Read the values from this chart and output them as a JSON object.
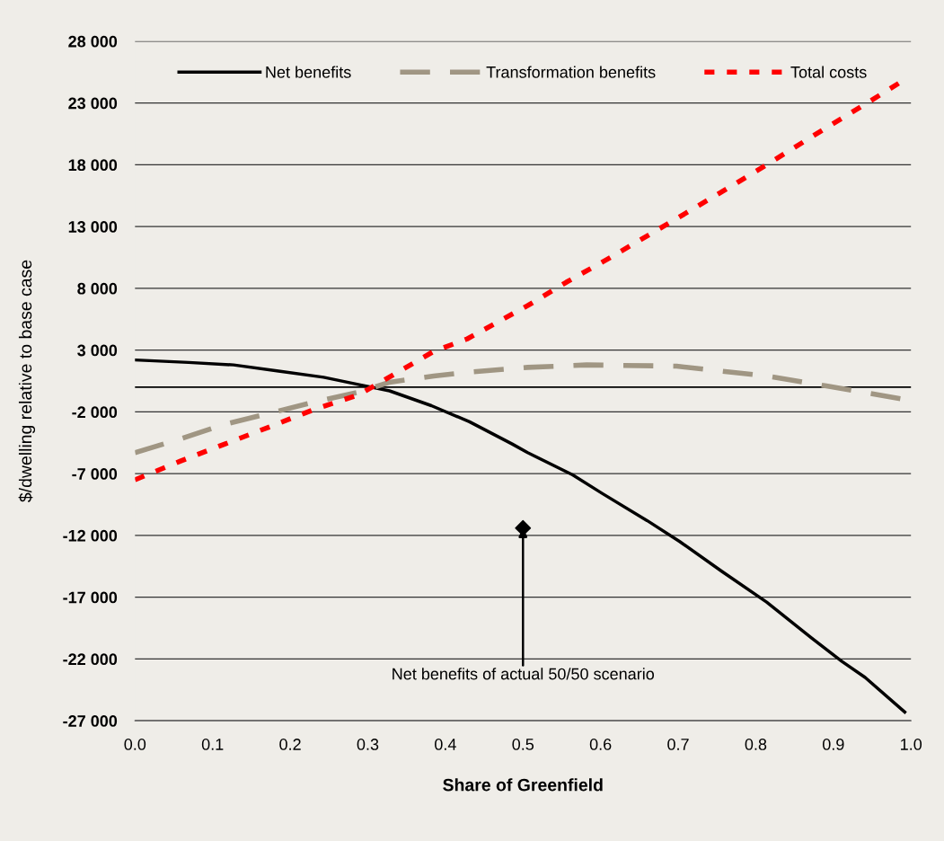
{
  "chart_data": {
    "type": "line",
    "xlabel": "Share of Greenfield",
    "ylabel": "$/dwelling relative to base case",
    "series": [
      {
        "name": "Net benefits",
        "color": "#000000",
        "line_style": "solid",
        "x": [
          0,
          0.069,
          0.127,
          0.185,
          0.243,
          0.289,
          0.328,
          0.382,
          0.431,
          0.486,
          0.506,
          0.564,
          0.602,
          0.66,
          0.702,
          0.756,
          0.814,
          0.872,
          0.911,
          0.941,
          0.992
        ],
        "values": [
          2200,
          2000,
          1800,
          1300,
          800,
          200,
          -300,
          -1500,
          -2800,
          -4600,
          -5300,
          -7100,
          -8600,
          -10800,
          -12500,
          -14900,
          -17400,
          -20300,
          -22200,
          -23500,
          -26300
        ]
      },
      {
        "name": "Transformation benefits",
        "color": "#a09683",
        "line_style": "dashed",
        "x": [
          0,
          0.058,
          0.116,
          0.174,
          0.231,
          0.289,
          0.328,
          0.385,
          0.428,
          0.506,
          0.582,
          0.698,
          0.756,
          0.814,
          0.891,
          0.992
        ],
        "values": [
          -5300,
          -4200,
          -3000,
          -2100,
          -1200,
          -400,
          400,
          900,
          1200,
          1600,
          1800,
          1700,
          1300,
          900,
          100,
          -1000
        ]
      },
      {
        "name": "Total costs",
        "color": "#ff0000",
        "line_style": "dotted",
        "x": [
          0,
          0.058,
          0.116,
          0.174,
          0.231,
          0.289,
          0.385,
          0.428,
          0.506,
          0.556,
          0.61,
          0.686,
          0.764,
          0.814,
          0.891,
          0.941,
          0.992
        ],
        "values": [
          -7500,
          -6000,
          -4600,
          -3200,
          -1800,
          -600,
          2900,
          3900,
          6600,
          8500,
          10400,
          13200,
          16100,
          18000,
          21000,
          22900,
          24900
        ]
      },
      {
        "type": "scatter",
        "marker": "diamond",
        "color": "#000000",
        "x": [
          0.5
        ],
        "values": [
          -11400
        ]
      }
    ],
    "annotations": [
      {
        "text": "Net benefits of actual 50/50 scenario",
        "x": 0.5,
        "y": -11400
      }
    ],
    "ref_lines": [
      {
        "axis": "y",
        "value": 0,
        "color": "#000000"
      }
    ],
    "xlim": [
      0,
      1
    ],
    "ylim": [
      -27000,
      28000
    ],
    "xticks": [
      {
        "value": 0,
        "label": "0.0"
      },
      {
        "value": 0.1,
        "label": "0.1"
      },
      {
        "value": 0.2,
        "label": "0.2"
      },
      {
        "value": 0.3,
        "label": "0.3"
      },
      {
        "value": 0.4,
        "label": "0.4"
      },
      {
        "value": 0.5,
        "label": "0.5"
      },
      {
        "value": 0.6,
        "label": "0.6"
      },
      {
        "value": 0.7,
        "label": "0.7"
      },
      {
        "value": 0.8,
        "label": "0.8"
      },
      {
        "value": 0.9,
        "label": "0.9"
      },
      {
        "value": 1,
        "label": "1.0"
      }
    ],
    "yticks": [
      {
        "value": -27000,
        "label": "-27 000"
      },
      {
        "value": -22000,
        "label": "-22 000"
      },
      {
        "value": -17000,
        "label": "-17 000"
      },
      {
        "value": -12000,
        "label": "-12 000"
      },
      {
        "value": -7000,
        "label": "-7 000"
      },
      {
        "value": -2000,
        "label": "-2 000"
      },
      {
        "value": 3000,
        "label": "3 000"
      },
      {
        "value": 8000,
        "label": "8 000"
      },
      {
        "value": 13000,
        "label": "13 000"
      },
      {
        "value": 18000,
        "label": "18 000"
      },
      {
        "value": 23000,
        "label": "23 000"
      },
      {
        "value": 28000,
        "label": "28 000"
      }
    ],
    "grid": "y",
    "legend": "top"
  }
}
